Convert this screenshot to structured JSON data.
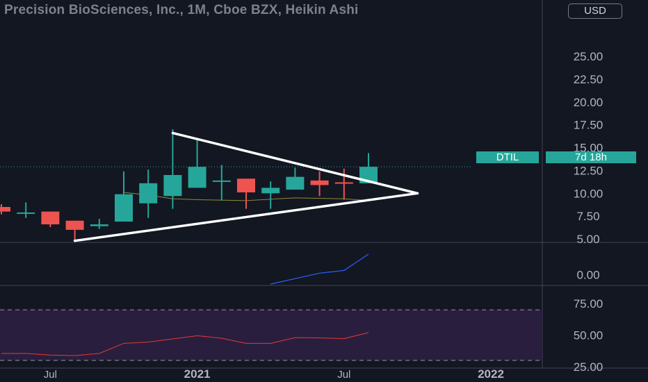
{
  "header": {
    "title": "Precision BioSciences, Inc., 1M, Cboe BZX, Heikin Ashi",
    "currency_label": "USD"
  },
  "price_tag": {
    "symbol": "DTIL",
    "countdown": "7d 18h"
  },
  "colors": {
    "background": "#131722",
    "up": "#26a69a",
    "down": "#ef5350",
    "trendline": "#ffffff",
    "ma_line": "#8f8a3a",
    "indicator_line": "#2962ff",
    "rsi_line": "#e53935",
    "rsi_band": "#2a1e3f"
  },
  "chart_data": [
    {
      "type": "candlestick",
      "title": "Precision BioSciences, Inc., 1M, Cboe BZX, Heikin Ashi",
      "x_tick_labels": [
        "Jul",
        "2021",
        "Jul",
        "2022"
      ],
      "y_tick_labels": [
        "5.00",
        "7.50",
        "10.00",
        "12.50",
        "15.00",
        "17.50",
        "20.00",
        "22.50",
        "25.00"
      ],
      "ylim": [
        4.7,
        28.5
      ],
      "grid": false,
      "last_price_line": 12.9,
      "candles": [
        {
          "date": "2020-05",
          "open": 8.5,
          "high": 8.8,
          "low": 7.7,
          "close": 8.0
        },
        {
          "date": "2020-06",
          "open": 7.9,
          "high": 9.0,
          "low": 7.3,
          "close": 7.9
        },
        {
          "date": "2020-07",
          "open": 8.0,
          "high": 8.0,
          "low": 6.3,
          "close": 6.6
        },
        {
          "date": "2020-08",
          "open": 7.0,
          "high": 7.0,
          "low": 4.7,
          "close": 6.0
        },
        {
          "date": "2020-09",
          "open": 6.4,
          "high": 7.2,
          "low": 6.1,
          "close": 6.6
        },
        {
          "date": "2020-10",
          "open": 6.9,
          "high": 12.4,
          "low": 6.9,
          "close": 9.9
        },
        {
          "date": "2020-11",
          "open": 8.9,
          "high": 12.6,
          "low": 7.3,
          "close": 11.1
        },
        {
          "date": "2020-12",
          "open": 9.7,
          "high": 17.0,
          "low": 8.3,
          "close": 12.0
        },
        {
          "date": "2021-01",
          "open": 10.6,
          "high": 15.9,
          "low": 10.6,
          "close": 12.9
        },
        {
          "date": "2021-02",
          "open": 11.4,
          "high": 13.1,
          "low": 9.2,
          "close": 11.4
        },
        {
          "date": "2021-03",
          "open": 11.6,
          "high": 11.6,
          "low": 8.3,
          "close": 10.1
        },
        {
          "date": "2021-04",
          "open": 10.0,
          "high": 11.3,
          "low": 8.3,
          "close": 10.6
        },
        {
          "date": "2021-05",
          "open": 10.4,
          "high": 12.8,
          "low": 10.4,
          "close": 11.8
        },
        {
          "date": "2021-06",
          "open": 11.4,
          "high": 12.4,
          "low": 9.7,
          "close": 10.9
        },
        {
          "date": "2021-07",
          "open": 11.2,
          "high": 12.7,
          "low": 9.3,
          "close": 11.1
        },
        {
          "date": "2021-08",
          "open": 11.1,
          "high": 14.4,
          "low": 11.1,
          "close": 12.9
        }
      ],
      "moving_average": [
        {
          "date": "2020-10",
          "value": 10.1
        },
        {
          "date": "2020-11",
          "value": 9.8
        },
        {
          "date": "2020-12",
          "value": 9.4
        },
        {
          "date": "2021-01",
          "value": 9.3
        },
        {
          "date": "2021-03",
          "value": 9.2
        },
        {
          "date": "2021-05",
          "value": 9.5
        },
        {
          "date": "2021-07",
          "value": 9.4
        },
        {
          "date": "2021-08",
          "value": 9.2
        }
      ],
      "trendlines": [
        {
          "from": {
            "date": "2020-12",
            "value": 16.6
          },
          "to": {
            "date": "2021-10",
            "value": 10.0
          }
        },
        {
          "from": {
            "date": "2020-08",
            "value": 4.8
          },
          "to": {
            "date": "2021-10",
            "value": 10.0
          }
        }
      ]
    },
    {
      "type": "line",
      "y_tick_labels": [
        "0.00"
      ],
      "ylim": [
        -0.35,
        1.0
      ],
      "series": [
        {
          "values": [
            {
              "date": "2021-04",
              "value": -0.35
            },
            {
              "date": "2021-05",
              "value": -0.15
            },
            {
              "date": "2021-06",
              "value": 0.05
            },
            {
              "date": "2021-07",
              "value": 0.15
            },
            {
              "date": "2021-08",
              "value": 0.75
            }
          ]
        }
      ]
    },
    {
      "type": "line",
      "y_tick_labels": [
        "25.00",
        "50.00",
        "75.00"
      ],
      "ylim": [
        25,
        75
      ],
      "band": [
        30,
        70
      ],
      "series": [
        {
          "values": [
            {
              "date": "2020-05",
              "value": 35.5
            },
            {
              "date": "2020-06",
              "value": 35.5
            },
            {
              "date": "2020-07",
              "value": 34.2
            },
            {
              "date": "2020-08",
              "value": 33.8
            },
            {
              "date": "2020-09",
              "value": 35.5
            },
            {
              "date": "2020-10",
              "value": 43.5
            },
            {
              "date": "2020-11",
              "value": 44.5
            },
            {
              "date": "2020-12",
              "value": 47.0
            },
            {
              "date": "2021-01",
              "value": 49.5
            },
            {
              "date": "2021-02",
              "value": 47.5
            },
            {
              "date": "2021-03",
              "value": 43.5
            },
            {
              "date": "2021-04",
              "value": 43.5
            },
            {
              "date": "2021-05",
              "value": 48.0
            },
            {
              "date": "2021-06",
              "value": 47.8
            },
            {
              "date": "2021-07",
              "value": 47.2
            },
            {
              "date": "2021-08",
              "value": 52.0
            }
          ]
        }
      ]
    }
  ]
}
